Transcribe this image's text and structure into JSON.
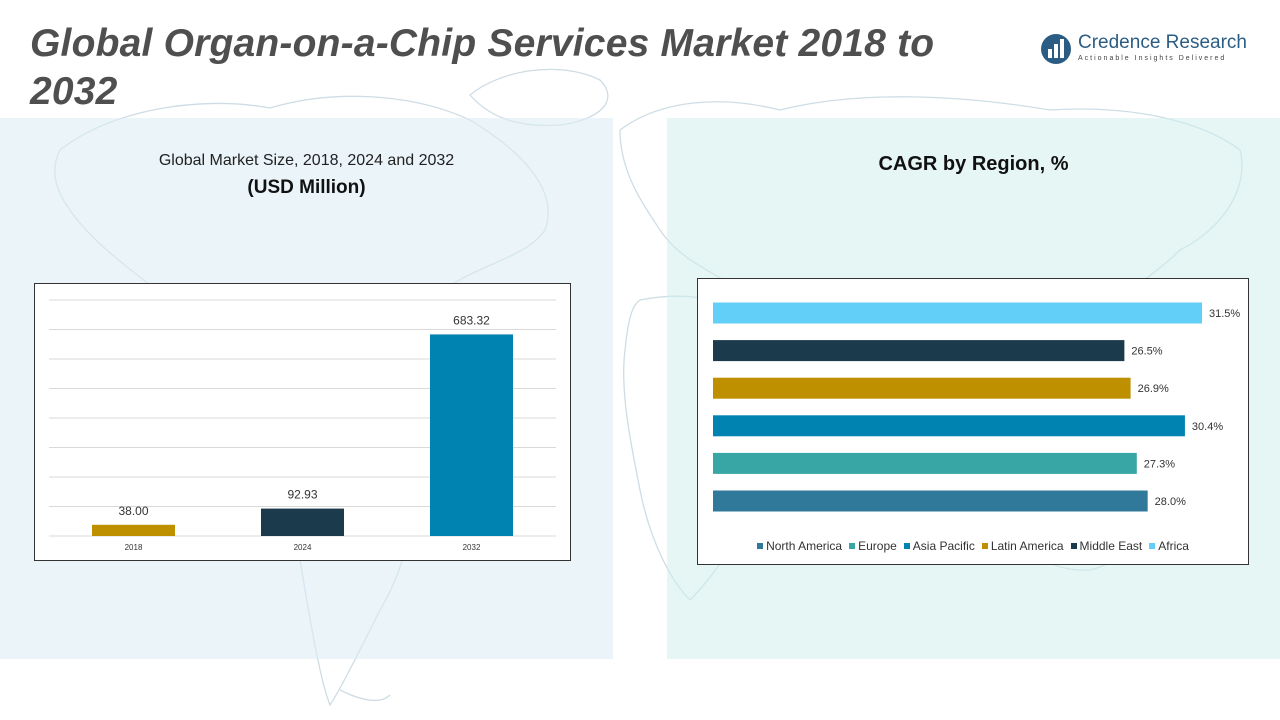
{
  "header": {
    "title": "Global Organ-on-a-Chip Services Market 2018 to 2032",
    "logo_name": "Credence Research",
    "logo_tagline": "Actionable Insights Delivered"
  },
  "colors": {
    "title": "#4f4f4f",
    "brand": "#2b5d84",
    "north_america": "#31799b",
    "europe": "#38a6a5",
    "asia_pacific": "#0083b0",
    "latin_america": "#be9000",
    "middle_east": "#1b3a4b",
    "africa": "#61cff7"
  },
  "chart_data": [
    {
      "type": "bar",
      "title": "Global Market Size, 2018, 2024 and 2032",
      "subtitle": "(USD Million)",
      "categories": [
        "2018",
        "2024",
        "2032"
      ],
      "values": [
        38.0,
        92.93,
        683.32
      ],
      "value_labels": [
        "38.00",
        "92.93",
        "683.32"
      ],
      "bar_colors": [
        "#be9000",
        "#1b3a4b",
        "#0083b0"
      ],
      "ylim": [
        0,
        800
      ],
      "grid": true
    },
    {
      "type": "bar",
      "orientation": "horizontal",
      "title": "CAGR by Region, %",
      "categories": [
        "North America",
        "Europe",
        "Asia Pacific",
        "Latin America",
        "Middle East",
        "Africa"
      ],
      "values": [
        28.0,
        27.3,
        30.4,
        26.9,
        26.5,
        31.5
      ],
      "value_labels": [
        "28.0%",
        "27.3%",
        "30.4%",
        "26.9%",
        "26.5%",
        "31.5%"
      ],
      "bar_colors": [
        "#31799b",
        "#38a6a5",
        "#0083b0",
        "#be9000",
        "#1b3a4b",
        "#61cff7"
      ],
      "xlim": [
        0,
        31.5
      ],
      "legend_position": "bottom",
      "grid": false
    }
  ]
}
